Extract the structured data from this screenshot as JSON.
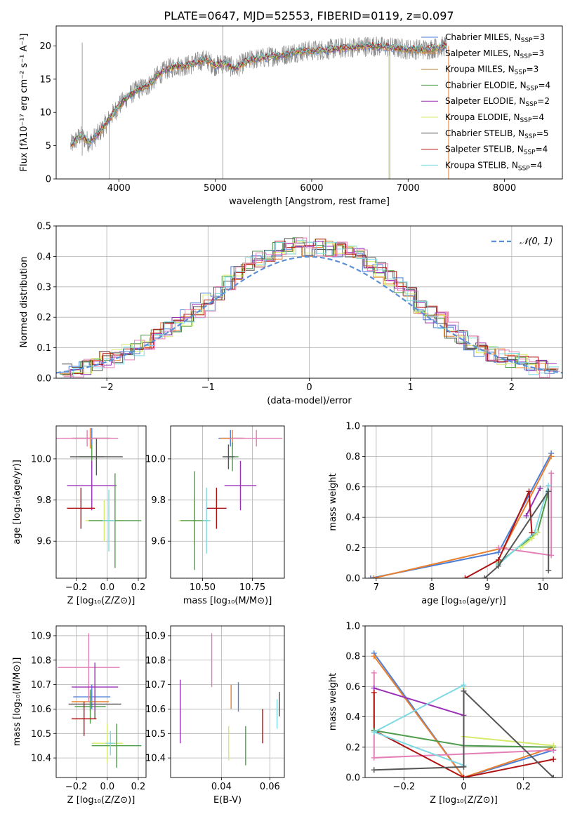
{
  "figure": {
    "title": "PLATE=0647, MJD=52553, FIBERID=0119, z=0.097"
  },
  "colors": {
    "blue": "#4e7fd8",
    "orange": "#e8802f",
    "green": "#4f9d4a",
    "purple": "#9b31b7",
    "yellow": "#d6ea6a",
    "gray": "#555555",
    "red": "#b01313",
    "cyan": "#7fd9e3",
    "pink": "#e37fb6",
    "dashed": "#5a8fd6"
  },
  "chart_data": [
    {
      "id": "spectrum",
      "type": "line",
      "xlabel": "wavelength [Angstrom, rest frame]",
      "ylabel": "Flux [fλ10⁻¹⁷ erg cm⁻² s⁻¹ A⁻¹]",
      "xlim": [
        3350,
        8600
      ],
      "ylim": [
        0,
        23
      ],
      "xticks": [
        4000,
        5000,
        6000,
        7000,
        8000
      ],
      "yticks": [
        0,
        5,
        10,
        15,
        20
      ],
      "grid": false,
      "legend_position": "top-right",
      "data_trend": {
        "x": [
          3500,
          3600,
          3700,
          3800,
          3900,
          4000,
          4100,
          4200,
          4300,
          4400,
          4500,
          4600,
          4700,
          4800,
          4900,
          5000,
          5100,
          5200,
          5300,
          5400,
          5500,
          5600,
          5700,
          5800,
          5900,
          6000,
          6200,
          6400,
          6600,
          6800,
          7000,
          7200,
          7400
        ],
        "y": [
          5,
          6.5,
          5.5,
          7,
          9,
          11,
          12.5,
          13.5,
          14,
          15.5,
          16.5,
          17,
          17,
          17.5,
          18,
          17,
          17.5,
          16.5,
          17.5,
          18,
          18.2,
          18.5,
          18.6,
          19,
          19.2,
          19.3,
          19.5,
          19.8,
          20,
          19.8,
          19.5,
          19.5,
          20
        ]
      },
      "series": [
        {
          "name": "Chabrier MILES, N",
          "sub": "SSP",
          "tail": "=3",
          "color": "#4e7fd8"
        },
        {
          "name": "Salpeter MILES, N",
          "sub": "SSP",
          "tail": "=3",
          "color": "#e8802f"
        },
        {
          "name": "Kroupa MILES, N",
          "sub": "SSP",
          "tail": "=3",
          "color": "#b07a2a"
        },
        {
          "name": "Chabrier ELODIE, N",
          "sub": "SSP",
          "tail": "=4",
          "color": "#4f9d4a"
        },
        {
          "name": "Salpeter ELODIE, N",
          "sub": "SSP",
          "tail": "=2",
          "color": "#9b31b7"
        },
        {
          "name": "Kroupa ELODIE, N",
          "sub": "SSP",
          "tail": "=4",
          "color": "#d6ea6a"
        },
        {
          "name": "Chabrier STELIB, N",
          "sub": "SSP",
          "tail": "=5",
          "color": "#555555"
        },
        {
          "name": "Salpeter STELIB, N",
          "sub": "SSP",
          "tail": "=4",
          "color": "#b01313"
        },
        {
          "name": "Kroupa STELIB, N",
          "sub": "SSP",
          "tail": "=4",
          "color": "#7fd9e3"
        }
      ]
    },
    {
      "id": "residuals",
      "type": "line",
      "xlabel": "(data-model)/error",
      "ylabel": "Normed distribution",
      "xlim": [
        -2.5,
        2.5
      ],
      "ylim": [
        0,
        0.5
      ],
      "xticks": [
        -2,
        -1,
        0,
        1,
        2
      ],
      "yticks": [
        0.0,
        0.1,
        0.2,
        0.3,
        0.4,
        0.5
      ],
      "grid": true,
      "legend_position": "top-right",
      "legend": "𝒩(0, 1)",
      "hist_centers": [
        -2.4,
        -2.3,
        -2.2,
        -2.1,
        -2.0,
        -1.9,
        -1.8,
        -1.7,
        -1.6,
        -1.5,
        -1.4,
        -1.3,
        -1.2,
        -1.1,
        -1.0,
        -0.9,
        -0.8,
        -0.7,
        -0.6,
        -0.5,
        -0.4,
        -0.3,
        -0.2,
        -0.1,
        0.0,
        0.1,
        0.2,
        0.3,
        0.4,
        0.5,
        0.6,
        0.7,
        0.8,
        0.9,
        1.0,
        1.1,
        1.2,
        1.3,
        1.4,
        1.5,
        1.6,
        1.7,
        1.8,
        1.9,
        2.0,
        2.1,
        2.2,
        2.3,
        2.4
      ],
      "hist_envelope": [
        0.025,
        0.03,
        0.04,
        0.05,
        0.06,
        0.07,
        0.085,
        0.1,
        0.12,
        0.14,
        0.16,
        0.18,
        0.2,
        0.22,
        0.25,
        0.28,
        0.31,
        0.34,
        0.37,
        0.39,
        0.41,
        0.42,
        0.43,
        0.44,
        0.43,
        0.43,
        0.43,
        0.42,
        0.41,
        0.4,
        0.38,
        0.36,
        0.33,
        0.3,
        0.27,
        0.24,
        0.21,
        0.19,
        0.16,
        0.14,
        0.12,
        0.1,
        0.085,
        0.07,
        0.06,
        0.05,
        0.04,
        0.03,
        0.025
      ],
      "normal_mean": 0,
      "normal_sigma": 1
    },
    {
      "id": "age_vs_Z",
      "type": "scatter",
      "xlabel": "Z [log₁₀(Z/Z⊙)]",
      "ylabel": "age  [log₁₀(age/yr)]",
      "xlim": [
        -0.33,
        0.25
      ],
      "ylim": [
        9.42,
        10.16
      ],
      "xticks": [
        -0.2,
        0.0,
        0.2
      ],
      "yticks": [
        9.6,
        9.8,
        10.0
      ],
      "grid": true,
      "points": [
        {
          "x": -0.1,
          "y": 10.1,
          "xe": 0.12,
          "ye": 0.05,
          "color": "#4e7fd8"
        },
        {
          "x": -0.11,
          "y": 10.1,
          "xe": 0.12,
          "ye": 0.05,
          "color": "#e8802f"
        },
        {
          "x": -0.1,
          "y": 10.01,
          "xe": 0.08,
          "ye": 0.06,
          "color": "#4f9d4a"
        },
        {
          "x": -0.07,
          "y": 10.01,
          "xe": 0.17,
          "ye": 0.09,
          "color": "#555555"
        },
        {
          "x": -0.13,
          "y": 10.1,
          "xe": 0.2,
          "ye": 0.04,
          "color": "#e37fb6"
        },
        {
          "x": -0.1,
          "y": 9.87,
          "xe": 0.16,
          "ye": 0.12,
          "color": "#9b31b7"
        },
        {
          "x": -0.17,
          "y": 9.76,
          "xe": 0.09,
          "ye": 0.1,
          "color": "#b01313"
        },
        {
          "x": -0.02,
          "y": 9.7,
          "xe": 0.12,
          "ye": 0.1,
          "color": "#d6ea6a"
        },
        {
          "x": 0.05,
          "y": 9.7,
          "xe": 0.17,
          "ye": 0.23,
          "color": "#4f9d4a"
        },
        {
          "x": 0.01,
          "y": 9.7,
          "xe": 0.04,
          "ye": 0.15,
          "color": "#7fd9e3"
        }
      ]
    },
    {
      "id": "age_vs_mass",
      "type": "scatter",
      "xlabel": "mass [log₁₀(M/M⊙)]",
      "ylabel": "",
      "xlim": [
        10.34,
        10.91
      ],
      "ylim": [
        9.42,
        10.16
      ],
      "xticks": [
        10.5,
        10.75
      ],
      "yticks": [
        9.6,
        9.8,
        10.0
      ],
      "grid": true,
      "points": [
        {
          "x": 10.64,
          "y": 10.1,
          "xe": 0.06,
          "ye": 0.04,
          "color": "#4e7fd8"
        },
        {
          "x": 10.65,
          "y": 10.1,
          "xe": 0.06,
          "ye": 0.04,
          "color": "#e8802f"
        },
        {
          "x": 10.65,
          "y": 10.01,
          "xe": 0.03,
          "ye": 0.07,
          "color": "#4f9d4a"
        },
        {
          "x": 10.63,
          "y": 10.01,
          "xe": 0.03,
          "ye": 0.06,
          "color": "#555555"
        },
        {
          "x": 10.77,
          "y": 10.1,
          "xe": 0.13,
          "ye": 0.04,
          "color": "#e37fb6"
        },
        {
          "x": 10.69,
          "y": 9.87,
          "xe": 0.08,
          "ye": 0.12,
          "color": "#9b31b7"
        },
        {
          "x": 10.57,
          "y": 9.76,
          "xe": 0.05,
          "ye": 0.1,
          "color": "#b01313"
        },
        {
          "x": 10.46,
          "y": 9.7,
          "xe": 0.08,
          "ye": 0.12,
          "color": "#d6ea6a"
        },
        {
          "x": 10.46,
          "y": 9.7,
          "xe": 0.07,
          "ye": 0.24,
          "color": "#4f9d4a"
        },
        {
          "x": 10.52,
          "y": 9.7,
          "xe": 0.02,
          "ye": 0.16,
          "color": "#7fd9e3"
        }
      ]
    },
    {
      "id": "mass_weight_vs_age",
      "type": "line",
      "xlabel": "age  [log₁₀(age/yr)]",
      "ylabel": "mass weight",
      "xlim": [
        6.8,
        10.35
      ],
      "ylim": [
        0,
        1.0
      ],
      "xticks": [
        7,
        8,
        9,
        10
      ],
      "yticks": [
        0.0,
        0.2,
        0.4,
        0.6,
        0.8,
        1.0
      ],
      "grid": true,
      "series": [
        {
          "color": "#4e7fd8",
          "x": [
            6.9,
            9.2,
            10.15
          ],
          "y": [
            0.0,
            0.17,
            0.82
          ]
        },
        {
          "color": "#e8802f",
          "x": [
            6.95,
            9.3,
            10.15
          ],
          "y": [
            0.0,
            0.2,
            0.8
          ]
        },
        {
          "color": "#e37fb6",
          "x": [
            9.2,
            10.15,
            10.15
          ],
          "y": [
            0.2,
            0.15,
            0.69
          ]
        },
        {
          "color": "#4f9d4a",
          "x": [
            9.2,
            9.9,
            10.1
          ],
          "y": [
            0.1,
            0.3,
            0.57
          ]
        },
        {
          "color": "#d6ea6a",
          "x": [
            9.6,
            9.8,
            9.9
          ],
          "y": [
            0.2,
            0.26,
            0.3
          ]
        },
        {
          "color": "#7fd9e3",
          "x": [
            9.2,
            9.85,
            10.1
          ],
          "y": [
            0.09,
            0.3,
            0.61
          ]
        },
        {
          "color": "#9b31b7",
          "x": [
            9.7,
            9.95
          ],
          "y": [
            0.41,
            0.59
          ]
        },
        {
          "color": "#b01313",
          "x": [
            8.6,
            9.2,
            9.75,
            9.8
          ],
          "y": [
            0.0,
            0.12,
            0.57,
            0.3
          ]
        },
        {
          "color": "#555555",
          "x": [
            8.95,
            9.2,
            10.1,
            10.1
          ],
          "y": [
            0.0,
            0.08,
            0.57,
            0.05
          ]
        }
      ]
    },
    {
      "id": "mass_vs_Z",
      "type": "scatter",
      "xlabel": "Z [log₁₀(Z/Z⊙)]",
      "ylabel": "mass [log₁₀(M/M⊙)]",
      "xlim": [
        -0.33,
        0.25
      ],
      "ylim": [
        10.32,
        10.94
      ],
      "xticks": [
        -0.2,
        0.0,
        0.2
      ],
      "yticks": [
        10.4,
        10.5,
        10.6,
        10.7,
        10.8,
        10.9
      ],
      "grid": true,
      "points": [
        {
          "x": -0.1,
          "y": 10.65,
          "xe": 0.12,
          "ye": 0.05,
          "color": "#4e7fd8"
        },
        {
          "x": -0.11,
          "y": 10.63,
          "xe": 0.12,
          "ye": 0.04,
          "color": "#e8802f"
        },
        {
          "x": -0.08,
          "y": 10.62,
          "xe": 0.17,
          "ye": 0.06,
          "color": "#555555"
        },
        {
          "x": -0.11,
          "y": 10.61,
          "xe": 0.1,
          "ye": 0.07,
          "color": "#4f9d4a"
        },
        {
          "x": -0.12,
          "y": 10.77,
          "xe": 0.2,
          "ye": 0.14,
          "color": "#e37fb6"
        },
        {
          "x": -0.08,
          "y": 10.69,
          "xe": 0.15,
          "ye": 0.1,
          "color": "#9b31b7"
        },
        {
          "x": -0.15,
          "y": 10.56,
          "xe": 0.08,
          "ye": 0.07,
          "color": "#b01313"
        },
        {
          "x": 0.0,
          "y": 10.46,
          "xe": 0.1,
          "ye": 0.08,
          "color": "#d6ea6a"
        },
        {
          "x": 0.06,
          "y": 10.45,
          "xe": 0.16,
          "ye": 0.09,
          "color": "#4f9d4a"
        },
        {
          "x": 0.02,
          "y": 10.46,
          "xe": 0.03,
          "ye": 0.05,
          "color": "#7fd9e3"
        }
      ]
    },
    {
      "id": "mass_vs_ebv",
      "type": "scatter",
      "xlabel": "E(B-V)",
      "ylabel": "",
      "xlim": [
        0.019,
        0.066
      ],
      "ylim": [
        10.32,
        10.94
      ],
      "xticks": [
        0.04,
        0.06
      ],
      "yticks": [
        10.4,
        10.5,
        10.6,
        10.7,
        10.8,
        10.9
      ],
      "grid": true,
      "points": [
        {
          "x": 0.023,
          "y": 10.59,
          "ye": 0.13,
          "color": "#9b31b7"
        },
        {
          "x": 0.036,
          "y": 10.8,
          "ye": 0.11,
          "color": "#e37fb6"
        },
        {
          "x": 0.043,
          "y": 10.46,
          "ye": 0.07,
          "color": "#d6ea6a"
        },
        {
          "x": 0.044,
          "y": 10.65,
          "ye": 0.05,
          "color": "#e8802f"
        },
        {
          "x": 0.047,
          "y": 10.65,
          "ye": 0.06,
          "color": "#4e7fd8"
        },
        {
          "x": 0.05,
          "y": 10.45,
          "ye": 0.08,
          "color": "#4f9d4a"
        },
        {
          "x": 0.057,
          "y": 10.53,
          "ye": 0.07,
          "color": "#b01313"
        },
        {
          "x": 0.063,
          "y": 10.58,
          "ye": 0.06,
          "color": "#7fd9e3"
        },
        {
          "x": 0.064,
          "y": 10.62,
          "ye": 0.05,
          "color": "#555555"
        }
      ]
    },
    {
      "id": "mass_weight_vs_Z",
      "type": "line",
      "xlabel": "Z [log₁₀(Z/Z⊙)]",
      "ylabel": "mass weight",
      "xlim": [
        -0.33,
        0.33
      ],
      "ylim": [
        0,
        1.0
      ],
      "xticks": [
        -0.2,
        0.0,
        0.2
      ],
      "yticks": [
        0.0,
        0.2,
        0.4,
        0.6,
        0.8,
        1.0
      ],
      "grid": true,
      "series": [
        {
          "color": "#4e7fd8",
          "x": [
            -0.3,
            0.0,
            0.3
          ],
          "y": [
            0.82,
            0.0,
            0.18
          ]
        },
        {
          "color": "#e8802f",
          "x": [
            -0.3,
            0.0,
            0.3
          ],
          "y": [
            0.8,
            0.0,
            0.2
          ]
        },
        {
          "color": "#e37fb6",
          "x": [
            -0.3,
            -0.3,
            0.3
          ],
          "y": [
            0.69,
            0.13,
            0.18
          ]
        },
        {
          "color": "#9b31b7",
          "x": [
            -0.3,
            0.0
          ],
          "y": [
            0.59,
            0.41
          ]
        },
        {
          "color": "#b01313",
          "x": [
            -0.3,
            -0.3,
            0.0,
            0.3
          ],
          "y": [
            0.56,
            0.31,
            0.0,
            0.12
          ]
        },
        {
          "color": "#4f9d4a",
          "x": [
            -0.3,
            0.0,
            0.3
          ],
          "y": [
            0.31,
            0.21,
            0.2
          ]
        },
        {
          "color": "#d6ea6a",
          "x": [
            0.0,
            0.0,
            0.3
          ],
          "y": [
            0.59,
            0.27,
            0.21
          ]
        },
        {
          "color": "#7fd9e3",
          "x": [
            0.0,
            0.0,
            -0.3,
            0.0
          ],
          "y": [
            0.61,
            0.08,
            0.3,
            0.61
          ]
        },
        {
          "color": "#555555",
          "x": [
            -0.3,
            0.0,
            0.0,
            0.3
          ],
          "y": [
            0.05,
            0.07,
            0.57,
            0.0
          ]
        }
      ]
    }
  ]
}
